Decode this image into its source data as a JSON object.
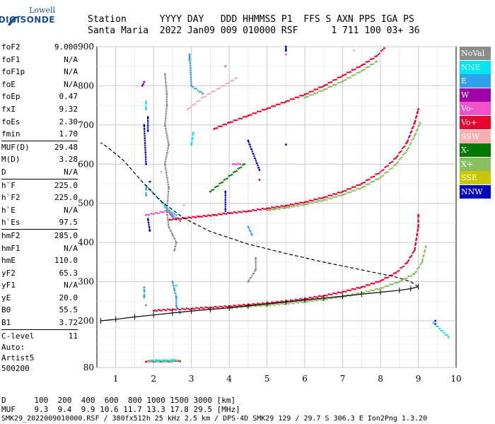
{
  "logo": {
    "brand": "Lowell",
    "name": "DIGISONDE"
  },
  "header": {
    "line1": "Station      YYYY DAY   DDD HHMMSS P1  FFS S AXN PPS IGA PS",
    "line2": "Santa Maria  2022 Jan09 009 010000 RSF      1 711 100 03+ 36"
  },
  "params": [
    [
      {
        "k": "foF2",
        "v": "9.000"
      },
      {
        "k": "foF1",
        "v": "N/A"
      },
      {
        "k": "foF1p",
        "v": "N/A"
      },
      {
        "k": "foE",
        "v": "N/A"
      },
      {
        "k": "foEp",
        "v": "0.47"
      },
      {
        "k": "fxI",
        "v": "9.32"
      },
      {
        "k": "foEs",
        "v": "2.30"
      },
      {
        "k": "fmin",
        "v": "1.70"
      }
    ],
    [
      {
        "k": "MUF(D)",
        "v": "29.48"
      },
      {
        "k": "M(D)",
        "v": "3.28"
      },
      {
        "k": "D",
        "v": "N/A"
      }
    ],
    [
      {
        "k": "h`F",
        "v": "225.0"
      },
      {
        "k": "h`F2",
        "v": "225.0"
      },
      {
        "k": "h`E",
        "v": "N/A"
      },
      {
        "k": "h`Es",
        "v": "97.5"
      }
    ],
    [
      {
        "k": "hmF2",
        "v": "285.0"
      },
      {
        "k": "hmF1",
        "v": "N/A"
      },
      {
        "k": "hmE",
        "v": "110.0"
      },
      {
        "k": "yF2",
        "v": "65.3"
      },
      {
        "k": "yF1",
        "v": "N/A"
      },
      {
        "k": "yE",
        "v": "20.0"
      },
      {
        "k": "B0",
        "v": "55.5"
      },
      {
        "k": "B1",
        "v": "3.72"
      }
    ],
    [
      {
        "k": "C-level",
        "v": "11"
      }
    ]
  ],
  "auto": {
    "line1": "Auto:",
    "line2": "Artist5",
    "line3": "500200"
  },
  "legend": [
    {
      "label": "NoVal",
      "color": "#8c8c8c"
    },
    {
      "label": "NNE",
      "color": "#00e5ee"
    },
    {
      "label": "E",
      "color": "#2fa0ea"
    },
    {
      "label": "W",
      "color": "#a000a8"
    },
    {
      "label": "Vo-",
      "color": "#f050c8"
    },
    {
      "label": "Vo+",
      "color": "#e8002e"
    },
    {
      "label": "SSW",
      "color": "#f5b0b0"
    },
    {
      "label": "X-",
      "color": "#007800"
    },
    {
      "label": "X+",
      "color": "#88c060"
    },
    {
      "label": "SSE",
      "color": "#c8c800"
    },
    {
      "label": "NNW",
      "color": "#0000c0"
    }
  ],
  "footer": {
    "distance_label": "D",
    "distances": "100  200  400  600  800 1000 1500 3000 [km]",
    "muf_label": "MUF",
    "mufs": "9.3  9.4  9.9 10.6 11.7 13.3 17.8 29.5 [MHz]",
    "fileline": "SMK29_2022009010000.RSF / 380fx512h 25 kHz 2.5 km / DPS-4D SMK29 129 / 29.7 S 306.3 E Ion2Png 1.3.20"
  },
  "chart_data": {
    "type": "scatter",
    "xlim": [
      0.5,
      10.0
    ],
    "ylim": [
      80,
      900
    ],
    "x_ticks": [
      1,
      2,
      3,
      4,
      5,
      6,
      7,
      8,
      9,
      10
    ],
    "y_ticks": [
      80,
      200,
      300,
      400,
      500,
      600,
      700,
      800,
      900
    ],
    "grid": true,
    "series": [
      {
        "color": "#e8002e",
        "points": [
          [
            2.0,
            226
          ],
          [
            2.5,
            229
          ],
          [
            3.0,
            231
          ],
          [
            3.5,
            234
          ],
          [
            4.0,
            237
          ],
          [
            4.5,
            241
          ],
          [
            5.0,
            245
          ],
          [
            5.5,
            250
          ],
          [
            6.0,
            256
          ],
          [
            6.5,
            264
          ],
          [
            7.0,
            274
          ],
          [
            7.5,
            286
          ],
          [
            8.0,
            302
          ],
          [
            8.4,
            322
          ],
          [
            8.7,
            348
          ],
          [
            8.9,
            380
          ],
          [
            9.0,
            440
          ],
          [
            9.0,
            470
          ]
        ]
      },
      {
        "color": "#88c060",
        "points": [
          [
            4.0,
            233
          ],
          [
            4.5,
            237
          ],
          [
            5.0,
            240
          ],
          [
            5.5,
            244
          ],
          [
            6.0,
            249
          ],
          [
            6.5,
            255
          ],
          [
            7.0,
            262
          ],
          [
            7.5,
            271
          ],
          [
            8.0,
            283
          ],
          [
            8.5,
            300
          ],
          [
            8.9,
            320
          ],
          [
            9.1,
            350
          ],
          [
            9.2,
            390
          ]
        ]
      },
      {
        "color": "#e8002e",
        "points": [
          [
            2.4,
            458
          ],
          [
            2.8,
            462
          ],
          [
            3.2,
            466
          ],
          [
            3.6,
            470
          ],
          [
            4.0,
            475
          ],
          [
            4.5,
            480
          ],
          [
            5.0,
            487
          ],
          [
            5.5,
            494
          ],
          [
            6.0,
            503
          ],
          [
            6.5,
            515
          ],
          [
            7.0,
            530
          ],
          [
            7.5,
            550
          ],
          [
            8.0,
            580
          ],
          [
            8.4,
            615
          ],
          [
            8.7,
            655
          ],
          [
            8.9,
            705
          ],
          [
            9.0,
            740
          ]
        ]
      },
      {
        "color": "#88c060",
        "points": [
          [
            5.0,
            482
          ],
          [
            5.5,
            489
          ],
          [
            6.0,
            497
          ],
          [
            6.5,
            508
          ],
          [
            7.0,
            522
          ],
          [
            7.5,
            540
          ],
          [
            8.0,
            566
          ],
          [
            8.4,
            598
          ],
          [
            8.7,
            635
          ],
          [
            8.9,
            672
          ],
          [
            9.05,
            706
          ]
        ]
      },
      {
        "color": "#e8002e",
        "points": [
          [
            3.6,
            690
          ],
          [
            4.0,
            706
          ],
          [
            4.5,
            724
          ],
          [
            5.0,
            742
          ],
          [
            5.5,
            760
          ],
          [
            6.0,
            778
          ],
          [
            6.5,
            800
          ],
          [
            7.0,
            826
          ],
          [
            7.5,
            852
          ],
          [
            7.9,
            876
          ],
          [
            8.1,
            896
          ]
        ]
      },
      {
        "color": "#88c060",
        "points": [
          [
            6.0,
            770
          ],
          [
            6.5,
            790
          ],
          [
            7.0,
            812
          ],
          [
            7.5,
            838
          ],
          [
            7.9,
            862
          ]
        ]
      },
      {
        "color": "#2fa0ea",
        "points": [
          [
            1.75,
            260
          ],
          [
            1.75,
            285
          ],
          [
            1.8,
            520
          ],
          [
            1.8,
            545
          ],
          [
            2.3,
            495
          ],
          [
            2.4,
            480
          ],
          [
            2.45,
            470
          ],
          [
            2.5,
            465
          ],
          [
            2.5,
            300
          ],
          [
            2.55,
            280
          ],
          [
            2.6,
            260
          ],
          [
            2.6,
            238
          ],
          [
            2.7,
            220
          ],
          [
            2.95,
            865
          ],
          [
            2.95,
            870
          ],
          [
            2.95,
            880
          ],
          [
            3.0,
            800
          ],
          [
            3.3,
            780
          ],
          [
            4.5,
            440
          ],
          [
            4.6,
            420
          ]
        ]
      },
      {
        "color": "#00e5ee",
        "points": [
          [
            1.8,
            740
          ],
          [
            1.8,
            760
          ],
          [
            2.3,
            490
          ],
          [
            2.5,
            475
          ],
          [
            2.6,
            470
          ],
          [
            2.6,
            290
          ],
          [
            3.0,
            650
          ],
          [
            3.05,
            680
          ],
          [
            9.4,
            195
          ],
          [
            9.8,
            158
          ]
        ]
      },
      {
        "color": "#0000c0",
        "points": [
          [
            1.75,
            700
          ],
          [
            1.8,
            600
          ],
          [
            1.85,
            720
          ],
          [
            1.85,
            685
          ],
          [
            1.85,
            460
          ],
          [
            1.9,
            430
          ],
          [
            1.9,
            555
          ],
          [
            3.9,
            530
          ],
          [
            3.9,
            480
          ],
          [
            4.5,
            660
          ],
          [
            4.8,
            585
          ],
          [
            5.5,
            890
          ],
          [
            5.5,
            900
          ],
          [
            5.5,
            650
          ],
          [
            9.45,
            200
          ]
        ]
      },
      {
        "color": "#a000a8",
        "points": [
          [
            1.7,
            800
          ],
          [
            1.75,
            810
          ],
          [
            4.8,
            560
          ],
          [
            9.45,
            192
          ]
        ]
      },
      {
        "color": "#f050c8",
        "points": [
          [
            1.8,
            470
          ],
          [
            2.35,
            480
          ],
          [
            2.5,
            470
          ],
          [
            2.7,
            455
          ],
          [
            4.1,
            600
          ],
          [
            4.3,
            600
          ],
          [
            5.5,
            880
          ],
          [
            8.0,
            580
          ]
        ]
      },
      {
        "color": "#f5b0b0",
        "points": [
          [
            2.2,
            580
          ],
          [
            2.9,
            740
          ],
          [
            3.3,
            770
          ],
          [
            4.2,
            820
          ],
          [
            7.3,
            890
          ],
          [
            2.8,
            495
          ]
        ]
      },
      {
        "color": "#007800",
        "points": [
          [
            3.5,
            530
          ],
          [
            4.4,
            600
          ],
          [
            2.6,
            460
          ]
        ]
      },
      {
        "color": "#8c8c8c",
        "points": [
          [
            2.3,
            830
          ],
          [
            2.35,
            780
          ],
          [
            2.35,
            750
          ],
          [
            2.3,
            700
          ],
          [
            2.4,
            650
          ],
          [
            2.3,
            600
          ],
          [
            2.4,
            540
          ],
          [
            2.35,
            480
          ],
          [
            2.4,
            440
          ],
          [
            2.5,
            420
          ],
          [
            2.6,
            400
          ],
          [
            2.55,
            380
          ],
          [
            3.9,
            850
          ],
          [
            4.7,
            360
          ],
          [
            4.7,
            330
          ],
          [
            4.5,
            300
          ],
          [
            1.8,
            240
          ]
        ]
      },
      {
        "color": "#e8002e",
        "points": [
          [
            1.8,
            95
          ],
          [
            1.9,
            96
          ],
          [
            2.0,
            95
          ],
          [
            2.1,
            96
          ],
          [
            2.2,
            95
          ],
          [
            2.3,
            96
          ],
          [
            2.4,
            95
          ],
          [
            2.5,
            96
          ],
          [
            2.6,
            97
          ],
          [
            2.7,
            96
          ]
        ]
      },
      {
        "color": "#88c060",
        "points": [
          [
            1.85,
            97
          ],
          [
            2.05,
            97
          ],
          [
            2.25,
            97
          ],
          [
            2.45,
            97
          ],
          [
            2.65,
            98
          ]
        ]
      },
      {
        "color": "#00e5ee",
        "points": [
          [
            1.95,
            98
          ],
          [
            2.15,
            98
          ],
          [
            2.35,
            98
          ],
          [
            2.55,
            99
          ]
        ]
      }
    ],
    "profile": {
      "points": [
        [
          0.6,
          200
        ],
        [
          1.0,
          204
        ],
        [
          1.5,
          210
        ],
        [
          2.0,
          215
        ],
        [
          2.5,
          220
        ],
        [
          3.0,
          225
        ],
        [
          3.5,
          229
        ],
        [
          4.0,
          233
        ],
        [
          4.5,
          238
        ],
        [
          5.0,
          243
        ],
        [
          5.5,
          248
        ],
        [
          6.0,
          253
        ],
        [
          6.5,
          258
        ],
        [
          7.0,
          263
        ],
        [
          7.5,
          268
        ],
        [
          8.0,
          273
        ],
        [
          8.5,
          278
        ],
        [
          8.8,
          282
        ],
        [
          9.0,
          287
        ]
      ]
    },
    "profile_extrapolation": {
      "points": [
        [
          9.0,
          287
        ],
        [
          8.8,
          300
        ],
        [
          8.4,
          312
        ],
        [
          7.5,
          330
        ],
        [
          6.5,
          350
        ],
        [
          5.5,
          372
        ],
        [
          4.5,
          396
        ],
        [
          3.5,
          428
        ],
        [
          2.8,
          462
        ],
        [
          2.2,
          505
        ],
        [
          1.7,
          555
        ],
        [
          1.2,
          610
        ],
        [
          0.8,
          642
        ],
        [
          0.6,
          655
        ]
      ]
    }
  }
}
